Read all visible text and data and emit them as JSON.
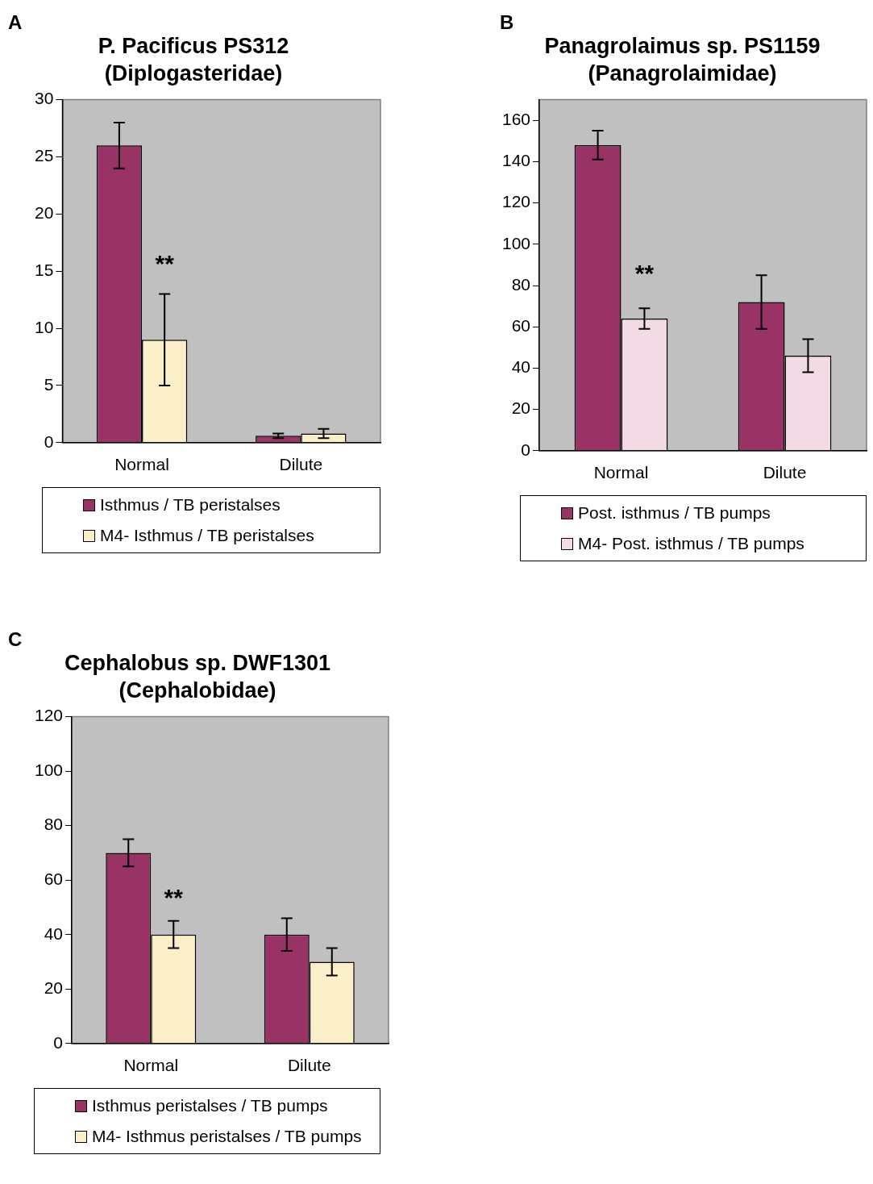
{
  "chart_data": [
    {
      "type": "bar",
      "title": "P. Pacificus PS312\n(Diplogasteridae)",
      "categories": [
        "Normal",
        "Dilute"
      ],
      "series": [
        {
          "name": "Isthmus / TB peristalses",
          "color": "#993366",
          "values": [
            26,
            0.6
          ],
          "errors": [
            2,
            0.2
          ]
        },
        {
          "name": "M4- Isthmus / TB peristalses",
          "color": "#fbefc8",
          "values": [
            9,
            0.8
          ],
          "errors": [
            4,
            0.4
          ]
        }
      ],
      "ylim": [
        0,
        30
      ],
      "yticks": [
        0,
        5,
        10,
        15,
        20,
        25,
        30
      ],
      "grid": false,
      "legend": "bottom",
      "annotations": [
        "A",
        {
          "text": "**",
          "x": "Normal",
          "y": 15.5
        }
      ]
    },
    {
      "type": "bar",
      "title": "Panagrolaimus sp. PS1159\n(Panagrolaimidae)",
      "categories": [
        "Normal",
        "Dilute"
      ],
      "series": [
        {
          "name": "Post. isthmus / TB pumps",
          "color": "#993366",
          "values": [
            148,
            72
          ],
          "errors": [
            7,
            13
          ]
        },
        {
          "name": "M4- Post. isthmus / TB pumps",
          "color": "#f3dbe5",
          "values": [
            64,
            46
          ],
          "errors": [
            5,
            8
          ]
        }
      ],
      "ylim": [
        0,
        170
      ],
      "yticks": [
        0,
        20,
        40,
        60,
        80,
        100,
        120,
        140,
        160
      ],
      "grid": false,
      "legend": "bottom",
      "annotations": [
        "B",
        {
          "text": "**",
          "x": "Normal",
          "y": 85
        }
      ]
    },
    {
      "type": "bar",
      "title": "Cephalobus sp. DWF1301\n(Cephalobidae)",
      "categories": [
        "Normal",
        "Dilute"
      ],
      "series": [
        {
          "name": "Isthmus peristalses / TB pumps",
          "color": "#993366",
          "values": [
            70,
            40
          ],
          "errors": [
            5,
            6
          ]
        },
        {
          "name": "M4- Isthmus peristalses / TB pumps",
          "color": "#fbefc8",
          "values": [
            40,
            30
          ],
          "errors": [
            5,
            5
          ]
        }
      ],
      "ylim": [
        0,
        120
      ],
      "yticks": [
        0,
        20,
        40,
        60,
        80,
        100,
        120
      ],
      "grid": false,
      "legend": "bottom",
      "annotations": [
        "C",
        {
          "text": "**",
          "x": "Normal",
          "y": 53
        }
      ]
    }
  ]
}
